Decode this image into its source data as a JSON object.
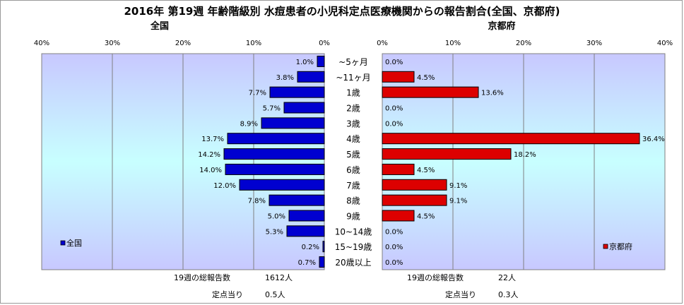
{
  "title": "2016年 第19週 年齢階級別 水痘患者の小児科定点医療機関からの報告割合(全国、京都府)",
  "colors": {
    "national_bar": "#0000d0",
    "kyoto_bar": "#dd0000",
    "plot_top": "#c8c8ff",
    "plot_mid": "#c8ffff",
    "plot_bottom": "#c8c8ff"
  },
  "chart_data": [
    {
      "type": "bar",
      "orientation": "horizontal",
      "direction": "right-to-left",
      "title": "全国",
      "categories": [
        "~5ヶ月",
        "~11ヶ月",
        "1歳",
        "2歳",
        "3歳",
        "4歳",
        "5歳",
        "6歳",
        "7歳",
        "8歳",
        "9歳",
        "10~14歳",
        "15~19歳",
        "20歳以上"
      ],
      "values": [
        1.0,
        3.8,
        7.7,
        5.7,
        8.9,
        13.7,
        14.2,
        14.0,
        12.0,
        7.8,
        5.0,
        5.3,
        0.2,
        0.7
      ],
      "value_labels": [
        "1.0%",
        "3.8%",
        "7.7%",
        "5.7%",
        "8.9%",
        "13.7%",
        "14.2%",
        "14.0%",
        "12.0%",
        "7.8%",
        "5.0%",
        "5.3%",
        "0.2%",
        "0.7%"
      ],
      "xlim": [
        0,
        40
      ],
      "ticks": [
        "40%",
        "30%",
        "20%",
        "10%",
        "0%"
      ],
      "legend": "全国",
      "legend_position": "bottom-left",
      "footer": [
        {
          "label": "19週の総報告数",
          "value": "1612人"
        },
        {
          "label": "定点当り",
          "value": "0.5人"
        }
      ]
    },
    {
      "type": "bar",
      "orientation": "horizontal",
      "direction": "left-to-right",
      "title": "京都府",
      "categories": [
        "~5ヶ月",
        "~11ヶ月",
        "1歳",
        "2歳",
        "3歳",
        "4歳",
        "5歳",
        "6歳",
        "7歳",
        "8歳",
        "9歳",
        "10~14歳",
        "15~19歳",
        "20歳以上"
      ],
      "values": [
        0.0,
        4.5,
        13.6,
        0.0,
        0.0,
        36.4,
        18.2,
        4.5,
        9.1,
        9.1,
        4.5,
        0.0,
        0.0,
        0.0
      ],
      "value_labels": [
        "0.0%",
        "4.5%",
        "13.6%",
        "0.0%",
        "0.0%",
        "36.4%",
        "18.2%",
        "4.5%",
        "9.1%",
        "9.1%",
        "4.5%",
        "0.0%",
        "0.0%",
        "0.0%"
      ],
      "xlim": [
        0,
        40
      ],
      "ticks": [
        "0%",
        "10%",
        "20%",
        "30%",
        "40%"
      ],
      "legend": "京都府",
      "legend_position": "bottom-right",
      "footer": [
        {
          "label": "19週の総報告数",
          "value": "22人"
        },
        {
          "label": "定点当り",
          "value": "0.3人"
        }
      ]
    }
  ]
}
